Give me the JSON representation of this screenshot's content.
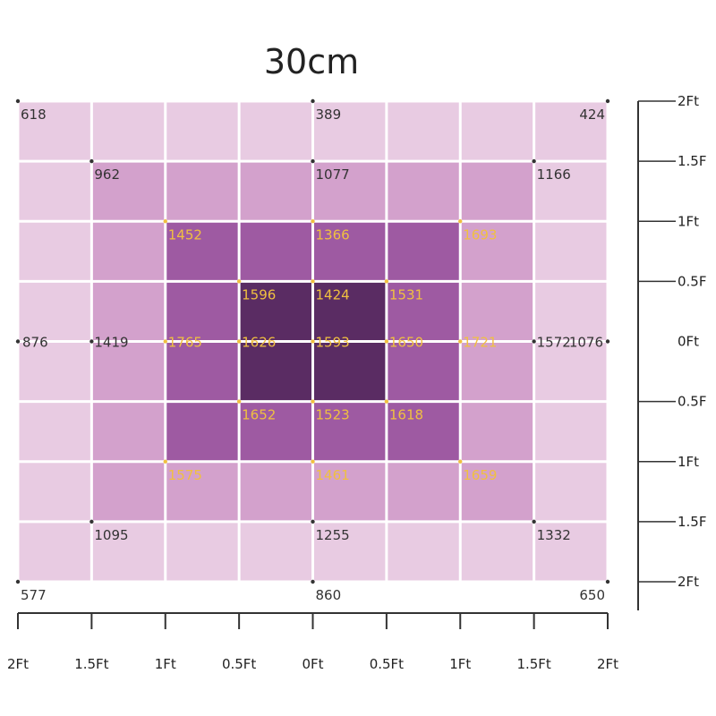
{
  "chart_data": {
    "type": "heatmap",
    "title": "30cm",
    "x_tick_labels": [
      "2Ft",
      "1.5Ft",
      "1Ft",
      "0.5Ft",
      "0Ft",
      "0.5Ft",
      "1Ft",
      "1.5Ft",
      "2Ft"
    ],
    "y_tick_labels": [
      "2Ft",
      "1.5F",
      "1Ft",
      "0.5F",
      "0Ft",
      "0.5F",
      "1Ft",
      "1.5F",
      "2Ft"
    ],
    "rings": {
      "fill_colors": [
        "#e8cbe2",
        "#d3a1cc",
        "#9e5aa2",
        "#5a2c63"
      ],
      "cell_levels": [
        [
          0,
          0,
          0,
          0,
          0,
          0,
          0,
          0
        ],
        [
          0,
          1,
          1,
          1,
          1,
          1,
          1,
          0
        ],
        [
          0,
          1,
          2,
          2,
          2,
          2,
          1,
          0
        ],
        [
          0,
          1,
          2,
          3,
          3,
          2,
          1,
          0
        ],
        [
          0,
          1,
          2,
          3,
          3,
          2,
          1,
          0
        ],
        [
          0,
          1,
          2,
          2,
          2,
          2,
          1,
          0
        ],
        [
          0,
          1,
          1,
          1,
          1,
          1,
          1,
          0
        ],
        [
          0,
          0,
          0,
          0,
          0,
          0,
          0,
          0
        ]
      ]
    },
    "points": [
      {
        "x": -2,
        "y": 2,
        "value": 618
      },
      {
        "x": 0,
        "y": 2,
        "value": 389
      },
      {
        "x": 2,
        "y": 2,
        "value": 424
      },
      {
        "x": -1.5,
        "y": 1.5,
        "value": 962
      },
      {
        "x": 0,
        "y": 1.5,
        "value": 1077
      },
      {
        "x": 1.5,
        "y": 1.5,
        "value": 1166
      },
      {
        "x": -1,
        "y": 1,
        "value": 1452
      },
      {
        "x": 0,
        "y": 1,
        "value": 1366
      },
      {
        "x": 1,
        "y": 1,
        "value": 1693
      },
      {
        "x": -0.5,
        "y": 0.5,
        "value": 1596
      },
      {
        "x": 0,
        "y": 0.5,
        "value": 1424
      },
      {
        "x": 0.5,
        "y": 0.5,
        "value": 1531
      },
      {
        "x": -2,
        "y": 0,
        "value": 876
      },
      {
        "x": -1.5,
        "y": 0,
        "value": 1419
      },
      {
        "x": -1,
        "y": 0,
        "value": 1765
      },
      {
        "x": -0.5,
        "y": 0,
        "value": 1626
      },
      {
        "x": 0,
        "y": 0,
        "value": 1593
      },
      {
        "x": 0.5,
        "y": 0,
        "value": 1650
      },
      {
        "x": 1,
        "y": 0,
        "value": 1721
      },
      {
        "x": 1.5,
        "y": 0,
        "value": 1572
      },
      {
        "x": 2,
        "y": 0,
        "value": 1076
      },
      {
        "x": -0.5,
        "y": -0.5,
        "value": 1652
      },
      {
        "x": 0,
        "y": -0.5,
        "value": 1523
      },
      {
        "x": 0.5,
        "y": -0.5,
        "value": 1618
      },
      {
        "x": -1,
        "y": -1,
        "value": 1575
      },
      {
        "x": 0,
        "y": -1,
        "value": 1461
      },
      {
        "x": 1,
        "y": -1,
        "value": 1659
      },
      {
        "x": -1.5,
        "y": -1.5,
        "value": 1095
      },
      {
        "x": 0,
        "y": -1.5,
        "value": 1255
      },
      {
        "x": 1.5,
        "y": -1.5,
        "value": 1332
      },
      {
        "x": -2,
        "y": -2,
        "value": 577
      },
      {
        "x": 0,
        "y": -2,
        "value": 860
      },
      {
        "x": 2,
        "y": -2,
        "value": 650
      }
    ],
    "label_colors": {
      "outer": "#333333",
      "inner": "#f0c040"
    },
    "grid": true,
    "legend": "none"
  }
}
